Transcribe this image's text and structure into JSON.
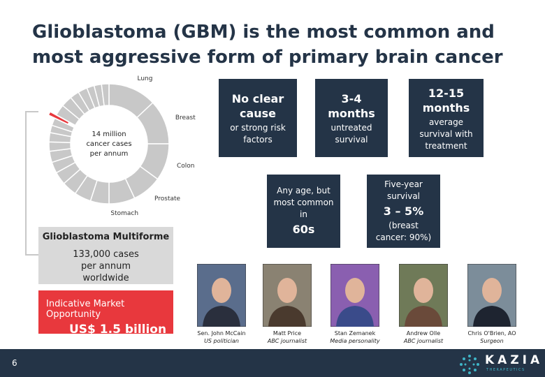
{
  "title": "Glioblastoma (GBM) is the most common and most aggressive form of primary brain cancer",
  "chart_data": {
    "type": "donut",
    "center_label": [
      "14 million",
      "cancer cases",
      "per annum"
    ],
    "categories": [
      "Lung",
      "Breast",
      "Colon",
      "Prostate",
      "Stomach",
      null,
      null,
      null,
      null,
      null,
      null,
      null,
      null,
      null,
      null,
      null,
      null,
      null,
      null,
      null,
      null,
      null,
      null
    ],
    "values": [
      13,
      12,
      10,
      8,
      7,
      5,
      4.5,
      4,
      3.5,
      3,
      3,
      2.5,
      2.5,
      2,
      2,
      1,
      3,
      3,
      2.5,
      2.5,
      2,
      2,
      2
    ],
    "color": "#c8c8c8",
    "highlight": {
      "index": 15,
      "color": "#e8383d"
    }
  },
  "stats": [
    [
      {
        "text": "No clear cause",
        "bold": true
      },
      {
        "text": "or strong risk factors",
        "bold": false
      }
    ],
    [
      {
        "text": "3-4 months",
        "bold": true
      },
      {
        "text": "untreated survival",
        "bold": false
      }
    ],
    [
      {
        "text": "12-15 months",
        "bold": true
      },
      {
        "text": "average survival with treatment",
        "bold": false
      }
    ],
    [
      {
        "text": "Any age, but most common in",
        "bold": false
      },
      {
        "text": "60s",
        "bold": true
      }
    ],
    [
      {
        "text": "Five-year survival",
        "bold": false
      },
      {
        "text": "3 – 5%",
        "bold": true
      },
      {
        "text": "(breast cancer: 90%)",
        "bold": false
      }
    ]
  ],
  "gbm_box": {
    "title": "Glioblastoma Multiforme",
    "text": "133,000 cases per annum worldwide"
  },
  "market_box": {
    "label": "Indicative Market Opportunity",
    "value": "US$ 1.5 billion"
  },
  "people": [
    {
      "name": "Sen. John McCain",
      "role": "US politician"
    },
    {
      "name": "Matt Price",
      "role": "ABC journalist"
    },
    {
      "name": "Stan Zemanek",
      "role": "Media personality"
    },
    {
      "name": "Andrew Olle",
      "role": "ABC journalist"
    },
    {
      "name": "Chris O'Brien, AO",
      "role": "Surgeon"
    }
  ],
  "footer": {
    "page": "6",
    "logo": "KAZIA",
    "logo_sub": "THERAPEUTICS"
  }
}
